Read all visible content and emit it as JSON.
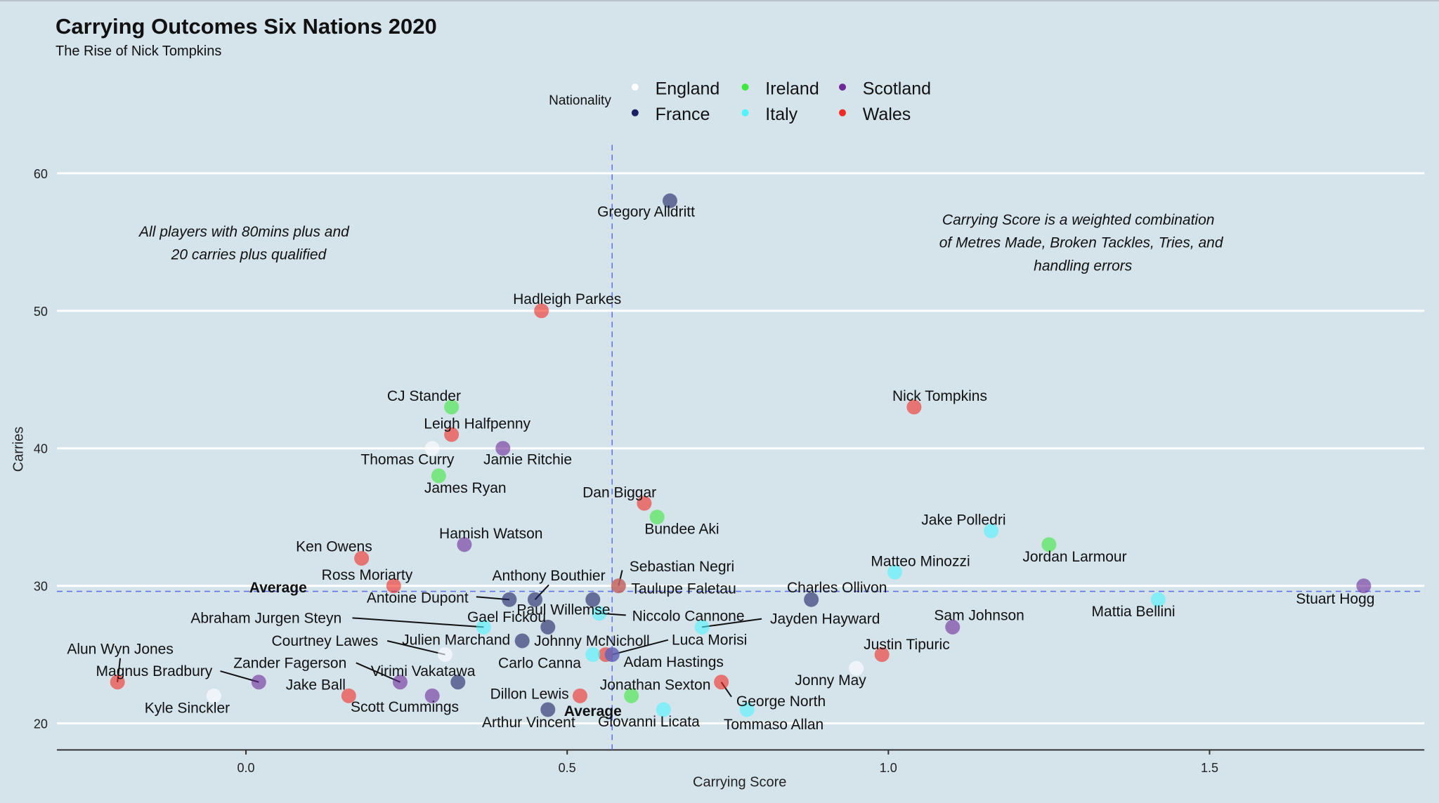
{
  "chart_data": {
    "type": "scatter",
    "title": "Carrying Outcomes Six Nations 2020",
    "subtitle": "The Rise of Nick Tompkins",
    "xlabel": "Carrying Score",
    "ylabel": "Carries",
    "xlim": [
      -0.3,
      1.83
    ],
    "ylim": [
      18,
      62
    ],
    "xticks": [
      "0.0",
      "0.5",
      "1.0",
      "1.5"
    ],
    "yticks": [
      "20",
      "30",
      "40",
      "50",
      "60"
    ],
    "grid": "horizontal major",
    "legend": {
      "title": "Nationality",
      "placement": "top",
      "entries": [
        "England",
        "France",
        "Ireland",
        "Italy",
        "Scotland",
        "Wales"
      ]
    },
    "colors": {
      "England": "#ffffff",
      "France": "#1b1f63",
      "Ireland": "#3ee83e",
      "Italy": "#4ff3fb",
      "Scotland": "#6a2a98",
      "Wales": "#f22a22"
    },
    "average": {
      "x": 0.57,
      "y": 29.6,
      "label": "Average"
    },
    "annotations": {
      "left": [
        "All players with 80mins plus and",
        "20 carries plus qualified"
      ],
      "right": [
        "Carrying Score is a weighted combination",
        "of Metres Made, Broken Tackles, Tries, and",
        "handling errors"
      ]
    },
    "points": [
      {
        "name": "Gregory Alldritt",
        "nation": "France",
        "x": 0.66,
        "y": 58
      },
      {
        "name": "Hadleigh Parkes",
        "nation": "Wales",
        "x": 0.46,
        "y": 50
      },
      {
        "name": "CJ Stander",
        "nation": "Ireland",
        "x": 0.32,
        "y": 43
      },
      {
        "name": "Leigh Halfpenny",
        "nation": "Wales",
        "x": 0.32,
        "y": 41
      },
      {
        "name": "Thomas Curry",
        "nation": "England",
        "x": 0.29,
        "y": 40
      },
      {
        "name": "Jamie Ritchie",
        "nation": "Scotland",
        "x": 0.4,
        "y": 40
      },
      {
        "name": "James Ryan",
        "nation": "Ireland",
        "x": 0.3,
        "y": 38
      },
      {
        "name": "Nick Tompkins",
        "nation": "Wales",
        "x": 1.04,
        "y": 43
      },
      {
        "name": "Dan Biggar",
        "nation": "Wales",
        "x": 0.62,
        "y": 36
      },
      {
        "name": "Bundee Aki",
        "nation": "Ireland",
        "x": 0.64,
        "y": 35
      },
      {
        "name": "Jake Polledri",
        "nation": "Italy",
        "x": 1.16,
        "y": 34
      },
      {
        "name": "Jordan Larmour",
        "nation": "Ireland",
        "x": 1.25,
        "y": 33
      },
      {
        "name": "Hamish Watson",
        "nation": "Scotland",
        "x": 0.34,
        "y": 33
      },
      {
        "name": "Ken Owens",
        "nation": "Wales",
        "x": 0.18,
        "y": 32
      },
      {
        "name": "Matteo Minozzi",
        "nation": "Italy",
        "x": 1.01,
        "y": 31
      },
      {
        "name": "Ross Moriarty",
        "nation": "Wales",
        "x": 0.23,
        "y": 30
      },
      {
        "name": "Sebastian Negri",
        "nation": "Italy",
        "x": 0.58,
        "y": 30
      },
      {
        "name": "Taulupe Faletau",
        "nation": "Wales",
        "x": 0.58,
        "y": 30
      },
      {
        "name": "Stuart Hogg",
        "nation": "Scotland",
        "x": 1.74,
        "y": 30
      },
      {
        "name": "Charles Ollivon",
        "nation": "France",
        "x": 0.88,
        "y": 29
      },
      {
        "name": "Mattia Bellini",
        "nation": "Italy",
        "x": 1.42,
        "y": 29
      },
      {
        "name": "Antoine Dupont",
        "nation": "France",
        "x": 0.41,
        "y": 29
      },
      {
        "name": "Anthony Bouthier",
        "nation": "France",
        "x": 0.45,
        "y": 29
      },
      {
        "name": "Paul Willemse",
        "nation": "France",
        "x": 0.54,
        "y": 29
      },
      {
        "name": "Niccolo Cannone",
        "nation": "Italy",
        "x": 0.55,
        "y": 28
      },
      {
        "name": "Gael Fickou",
        "nation": "France",
        "x": 0.47,
        "y": 27
      },
      {
        "name": "Abraham Jurgen Steyn",
        "nation": "Italy",
        "x": 0.37,
        "y": 27
      },
      {
        "name": "Jayden Hayward",
        "nation": "Italy",
        "x": 0.71,
        "y": 27
      },
      {
        "name": "Sam Johnson",
        "nation": "Scotland",
        "x": 1.1,
        "y": 27
      },
      {
        "name": "Julien Marchand",
        "nation": "France",
        "x": 0.43,
        "y": 26
      },
      {
        "name": "Courtney Lawes",
        "nation": "England",
        "x": 0.31,
        "y": 25
      },
      {
        "name": "Johnny McNicholl",
        "nation": "Wales",
        "x": 0.56,
        "y": 25
      },
      {
        "name": "Carlo Canna",
        "nation": "Italy",
        "x": 0.54,
        "y": 25
      },
      {
        "name": "Luca Morisi",
        "nation": "Italy",
        "x": 0.57,
        "y": 25
      },
      {
        "name": "Adam Hastings",
        "nation": "Scotland",
        "x": 0.57,
        "y": 25
      },
      {
        "name": "Justin Tipuric",
        "nation": "Wales",
        "x": 0.99,
        "y": 25
      },
      {
        "name": "Jonny May",
        "nation": "England",
        "x": 0.95,
        "y": 24
      },
      {
        "name": "Alun Wyn Jones",
        "nation": "Wales",
        "x": -0.2,
        "y": 23
      },
      {
        "name": "Magnus Bradbury",
        "nation": "Scotland",
        "x": 0.02,
        "y": 23
      },
      {
        "name": "Zander Fagerson",
        "nation": "Scotland",
        "x": 0.24,
        "y": 23
      },
      {
        "name": "Virimi Vakatawa",
        "nation": "France",
        "x": 0.33,
        "y": 23
      },
      {
        "name": "Jonathan Sexton",
        "nation": "Ireland",
        "x": 0.6,
        "y": 22
      },
      {
        "name": "George North",
        "nation": "Wales",
        "x": 0.74,
        "y": 23
      },
      {
        "name": "Kyle Sinckler",
        "nation": "England",
        "x": -0.05,
        "y": 22
      },
      {
        "name": "Jake Ball",
        "nation": "Wales",
        "x": 0.16,
        "y": 22
      },
      {
        "name": "Scott Cummings",
        "nation": "Scotland",
        "x": 0.29,
        "y": 22
      },
      {
        "name": "Dillon Lewis",
        "nation": "Wales",
        "x": 0.52,
        "y": 22
      },
      {
        "name": "Arthur Vincent",
        "nation": "France",
        "x": 0.47,
        "y": 21
      },
      {
        "name": "Giovanni Licata",
        "nation": "Italy",
        "x": 0.65,
        "y": 21
      },
      {
        "name": "Tommaso Allan",
        "nation": "Italy",
        "x": 0.78,
        "y": 21
      }
    ]
  }
}
